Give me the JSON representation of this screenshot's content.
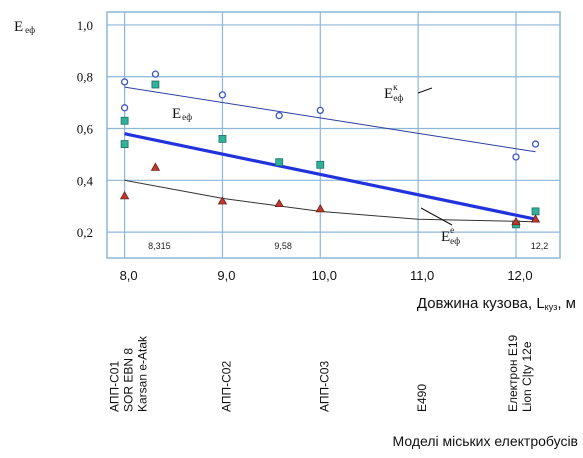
{
  "chart_data": {
    "type": "scatter",
    "y_axis": {
      "label": "E",
      "label_sub": "еф",
      "ticks": [
        "1,0",
        "0,8",
        "0,6",
        "0,4",
        "0,2"
      ],
      "tick_values": [
        1.0,
        0.8,
        0.6,
        0.4,
        0.2
      ],
      "range": [
        0.1,
        1.05
      ]
    },
    "x_axis": {
      "label": "Довжина кузова, L",
      "label_sub": "куз",
      "label_unit": ", м",
      "ticks": [
        "8,0",
        "9,0",
        "10,0",
        "11,0",
        "12,0"
      ],
      "tick_values": [
        8.0,
        9.0,
        10.0,
        11.0,
        12.0
      ],
      "range": [
        7.82,
        12.45
      ]
    },
    "inner_labels": [
      {
        "text": "8,315",
        "x": 8.315
      },
      {
        "text": "9,58",
        "x": 9.58
      },
      {
        "text": "12,2",
        "x": 12.2
      }
    ],
    "models": {
      "title": "Моделі міських електробусів",
      "items": [
        {
          "x": 8.0,
          "lines": [
            "АПП-С01",
            "SOR EBN 8",
            "Karsan e-Atak"
          ]
        },
        {
          "x": 9.0,
          "lines": [
            "АПП-С02"
          ]
        },
        {
          "x": 10.0,
          "lines": [
            "АПП-С03"
          ]
        },
        {
          "x": 11.0,
          "lines": [
            "E490"
          ]
        },
        {
          "x": 12.0,
          "lines": [
            "Електрон E19",
            "Lion C|ty 12e"
          ]
        }
      ]
    },
    "grid": true,
    "series": [
      {
        "name": "E",
        "name_sup": "к",
        "name_sub": "еф",
        "color": "#2b3fa0",
        "marker": "open-circle",
        "points": [
          [
            8.0,
            0.78
          ],
          [
            8.0,
            0.68
          ],
          [
            8.315,
            0.81
          ],
          [
            9.0,
            0.73
          ],
          [
            9.58,
            0.65
          ],
          [
            10.0,
            0.67
          ],
          [
            12.0,
            0.49
          ],
          [
            12.2,
            0.54
          ]
        ],
        "trend": [
          [
            8.0,
            0.76
          ],
          [
            12.2,
            0.51
          ]
        ]
      },
      {
        "name": "E",
        "name_sub": "еф",
        "color": "#2233dd",
        "marker": "square",
        "points": [
          [
            8.0,
            0.63
          ],
          [
            8.0,
            0.54
          ],
          [
            8.315,
            0.77
          ],
          [
            9.0,
            0.56
          ],
          [
            9.58,
            0.47
          ],
          [
            10.0,
            0.46
          ],
          [
            12.0,
            0.23
          ],
          [
            12.2,
            0.28
          ]
        ],
        "trend": [
          [
            8.0,
            0.58
          ],
          [
            12.2,
            0.25
          ]
        ]
      },
      {
        "name": "E",
        "name_sup": "е",
        "name_sub": "еф",
        "color": "#333333",
        "marker": "triangle",
        "points": [
          [
            8.0,
            0.34
          ],
          [
            8.315,
            0.45
          ],
          [
            9.0,
            0.32
          ],
          [
            9.58,
            0.31
          ],
          [
            10.0,
            0.29
          ],
          [
            12.0,
            0.24
          ],
          [
            12.2,
            0.25
          ]
        ],
        "trend": [
          [
            8.0,
            0.4
          ],
          [
            9.0,
            0.33
          ],
          [
            10.0,
            0.28
          ],
          [
            11.0,
            0.25
          ],
          [
            12.2,
            0.24
          ]
        ]
      }
    ]
  }
}
